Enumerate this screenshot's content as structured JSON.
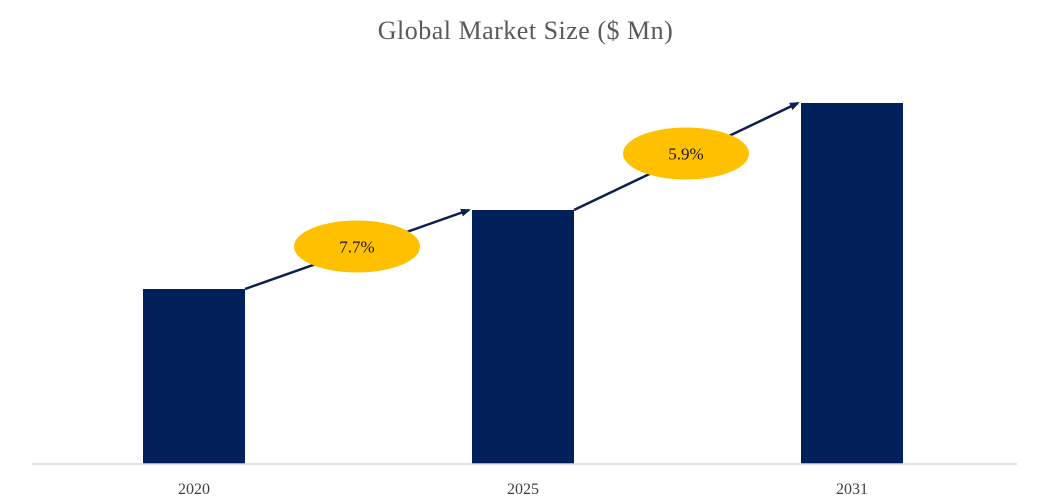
{
  "chart_data": {
    "type": "bar",
    "title": "Global Market Size ($ Mn)",
    "categories": [
      "2020",
      "2025",
      "2031"
    ],
    "values": [
      175,
      254,
      361
    ],
    "ylim": [
      0,
      361
    ],
    "xlabel": "",
    "ylabel": "",
    "grid": false,
    "annotations": [
      {
        "label": "7.7%",
        "from": "2020",
        "to": "2025"
      },
      {
        "label": "5.9%",
        "from": "2025",
        "to": "2031"
      }
    ]
  },
  "colors": {
    "bar": "#001f5b",
    "badge": "#ffc000",
    "arrow": "#0d1f4f",
    "axis": "#d9d9d9"
  }
}
